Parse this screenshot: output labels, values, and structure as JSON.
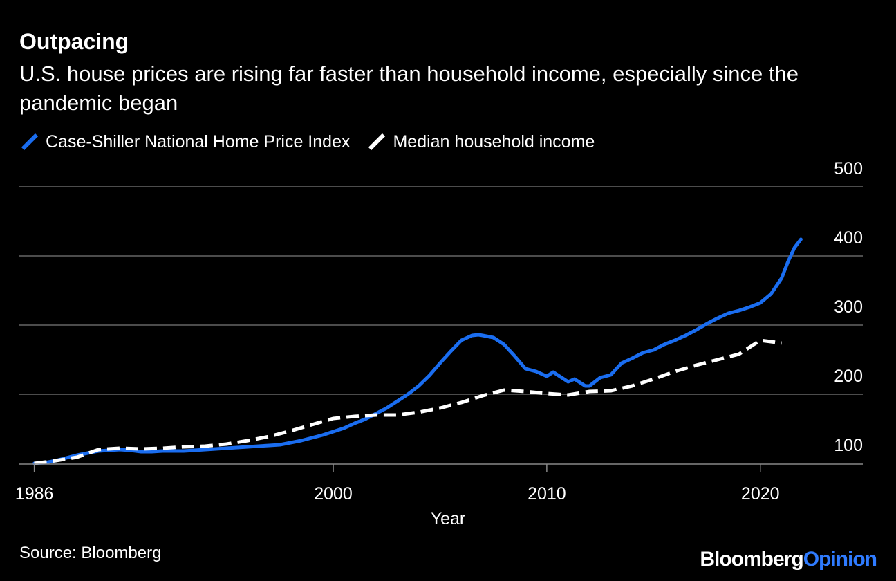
{
  "header": {
    "title": "Outpacing",
    "subtitle": "U.S. house prices are rising far faster than household income, especially since the pandemic began"
  },
  "footer": {
    "source": "Source: Bloomberg",
    "brand_primary": "Bloomberg",
    "brand_secondary": "Opinion"
  },
  "colors": {
    "background": "#000000",
    "home_price": "#1a6df0",
    "income": "#ffffff",
    "grid": "#666666",
    "brand_accent": "#2f7bff"
  },
  "chart_data": {
    "type": "line",
    "title": "Outpacing",
    "subtitle": "U.S. house prices are rising far faster than household income, especially since the pandemic began",
    "xlabel": "Year",
    "ylabel": "",
    "xlim": [
      1985.3,
      2024.8
    ],
    "ylim": [
      100,
      500
    ],
    "x_ticks": [
      1986,
      2000,
      2010,
      2020
    ],
    "y_ticks": [
      100,
      200,
      300,
      400,
      500
    ],
    "grid": true,
    "legend_position": "top-left",
    "series": [
      {
        "name": "Case-Shiller National Home Price Index",
        "color": "#1a6df0",
        "style": "solid",
        "points": [
          [
            1986,
            100
          ],
          [
            1986.5,
            101
          ],
          [
            1987,
            104
          ],
          [
            1987.5,
            108
          ],
          [
            1988,
            112
          ],
          [
            1988.5,
            115
          ],
          [
            1989,
            118
          ],
          [
            1989.5,
            119
          ],
          [
            1990,
            120
          ],
          [
            1990.5,
            119
          ],
          [
            1991,
            117
          ],
          [
            1991.5,
            117
          ],
          [
            1992,
            118
          ],
          [
            1992.5,
            118
          ],
          [
            1993,
            118
          ],
          [
            1993.5,
            119
          ],
          [
            1994,
            120
          ],
          [
            1994.5,
            121
          ],
          [
            1995,
            122
          ],
          [
            1995.5,
            123
          ],
          [
            1996,
            124
          ],
          [
            1996.5,
            125
          ],
          [
            1997,
            126
          ],
          [
            1997.5,
            127
          ],
          [
            1998,
            130
          ],
          [
            1998.5,
            133
          ],
          [
            1999,
            137
          ],
          [
            1999.5,
            141
          ],
          [
            2000,
            146
          ],
          [
            2000.5,
            151
          ],
          [
            2001,
            158
          ],
          [
            2001.5,
            164
          ],
          [
            2002,
            172
          ],
          [
            2002.5,
            180
          ],
          [
            2003,
            190
          ],
          [
            2003.5,
            200
          ],
          [
            2004,
            212
          ],
          [
            2004.5,
            227
          ],
          [
            2005,
            245
          ],
          [
            2005.5,
            262
          ],
          [
            2006,
            278
          ],
          [
            2006.5,
            285
          ],
          [
            2006.8,
            286
          ],
          [
            2007,
            285
          ],
          [
            2007.5,
            282
          ],
          [
            2008,
            272
          ],
          [
            2008.5,
            255
          ],
          [
            2009,
            237
          ],
          [
            2009.5,
            233
          ],
          [
            2010,
            226
          ],
          [
            2010.3,
            232
          ],
          [
            2010.8,
            222
          ],
          [
            2011,
            218
          ],
          [
            2011.3,
            222
          ],
          [
            2011.8,
            212
          ],
          [
            2012,
            212
          ],
          [
            2012.5,
            224
          ],
          [
            2013,
            228
          ],
          [
            2013.5,
            245
          ],
          [
            2014,
            252
          ],
          [
            2014.5,
            260
          ],
          [
            2015,
            264
          ],
          [
            2015.5,
            272
          ],
          [
            2016,
            278
          ],
          [
            2016.5,
            285
          ],
          [
            2017,
            293
          ],
          [
            2017.5,
            302
          ],
          [
            2018,
            310
          ],
          [
            2018.5,
            317
          ],
          [
            2019,
            321
          ],
          [
            2019.5,
            326
          ],
          [
            2020,
            332
          ],
          [
            2020.5,
            345
          ],
          [
            2021,
            368
          ],
          [
            2021.3,
            392
          ],
          [
            2021.6,
            412
          ],
          [
            2021.9,
            424
          ]
        ]
      },
      {
        "name": "Median household income",
        "color": "#ffffff",
        "style": "dashed",
        "points": [
          [
            1986,
            100
          ],
          [
            1987,
            104
          ],
          [
            1988,
            109
          ],
          [
            1989,
            120
          ],
          [
            1990,
            122
          ],
          [
            1991,
            121
          ],
          [
            1992,
            122
          ],
          [
            1993,
            124
          ],
          [
            1994,
            125
          ],
          [
            1995,
            128
          ],
          [
            1996,
            133
          ],
          [
            1997,
            139
          ],
          [
            1998,
            147
          ],
          [
            1999,
            156
          ],
          [
            2000,
            165
          ],
          [
            2001,
            168
          ],
          [
            2002,
            170
          ],
          [
            2003,
            170
          ],
          [
            2004,
            174
          ],
          [
            2005,
            180
          ],
          [
            2006,
            188
          ],
          [
            2007,
            198
          ],
          [
            2008,
            206
          ],
          [
            2009,
            204
          ],
          [
            2010,
            201
          ],
          [
            2011,
            199
          ],
          [
            2012,
            204
          ],
          [
            2013,
            205
          ],
          [
            2014,
            212
          ],
          [
            2015,
            222
          ],
          [
            2016,
            233
          ],
          [
            2017,
            242
          ],
          [
            2018,
            250
          ],
          [
            2019,
            258
          ],
          [
            2020,
            278
          ],
          [
            2021,
            274
          ]
        ]
      }
    ]
  }
}
